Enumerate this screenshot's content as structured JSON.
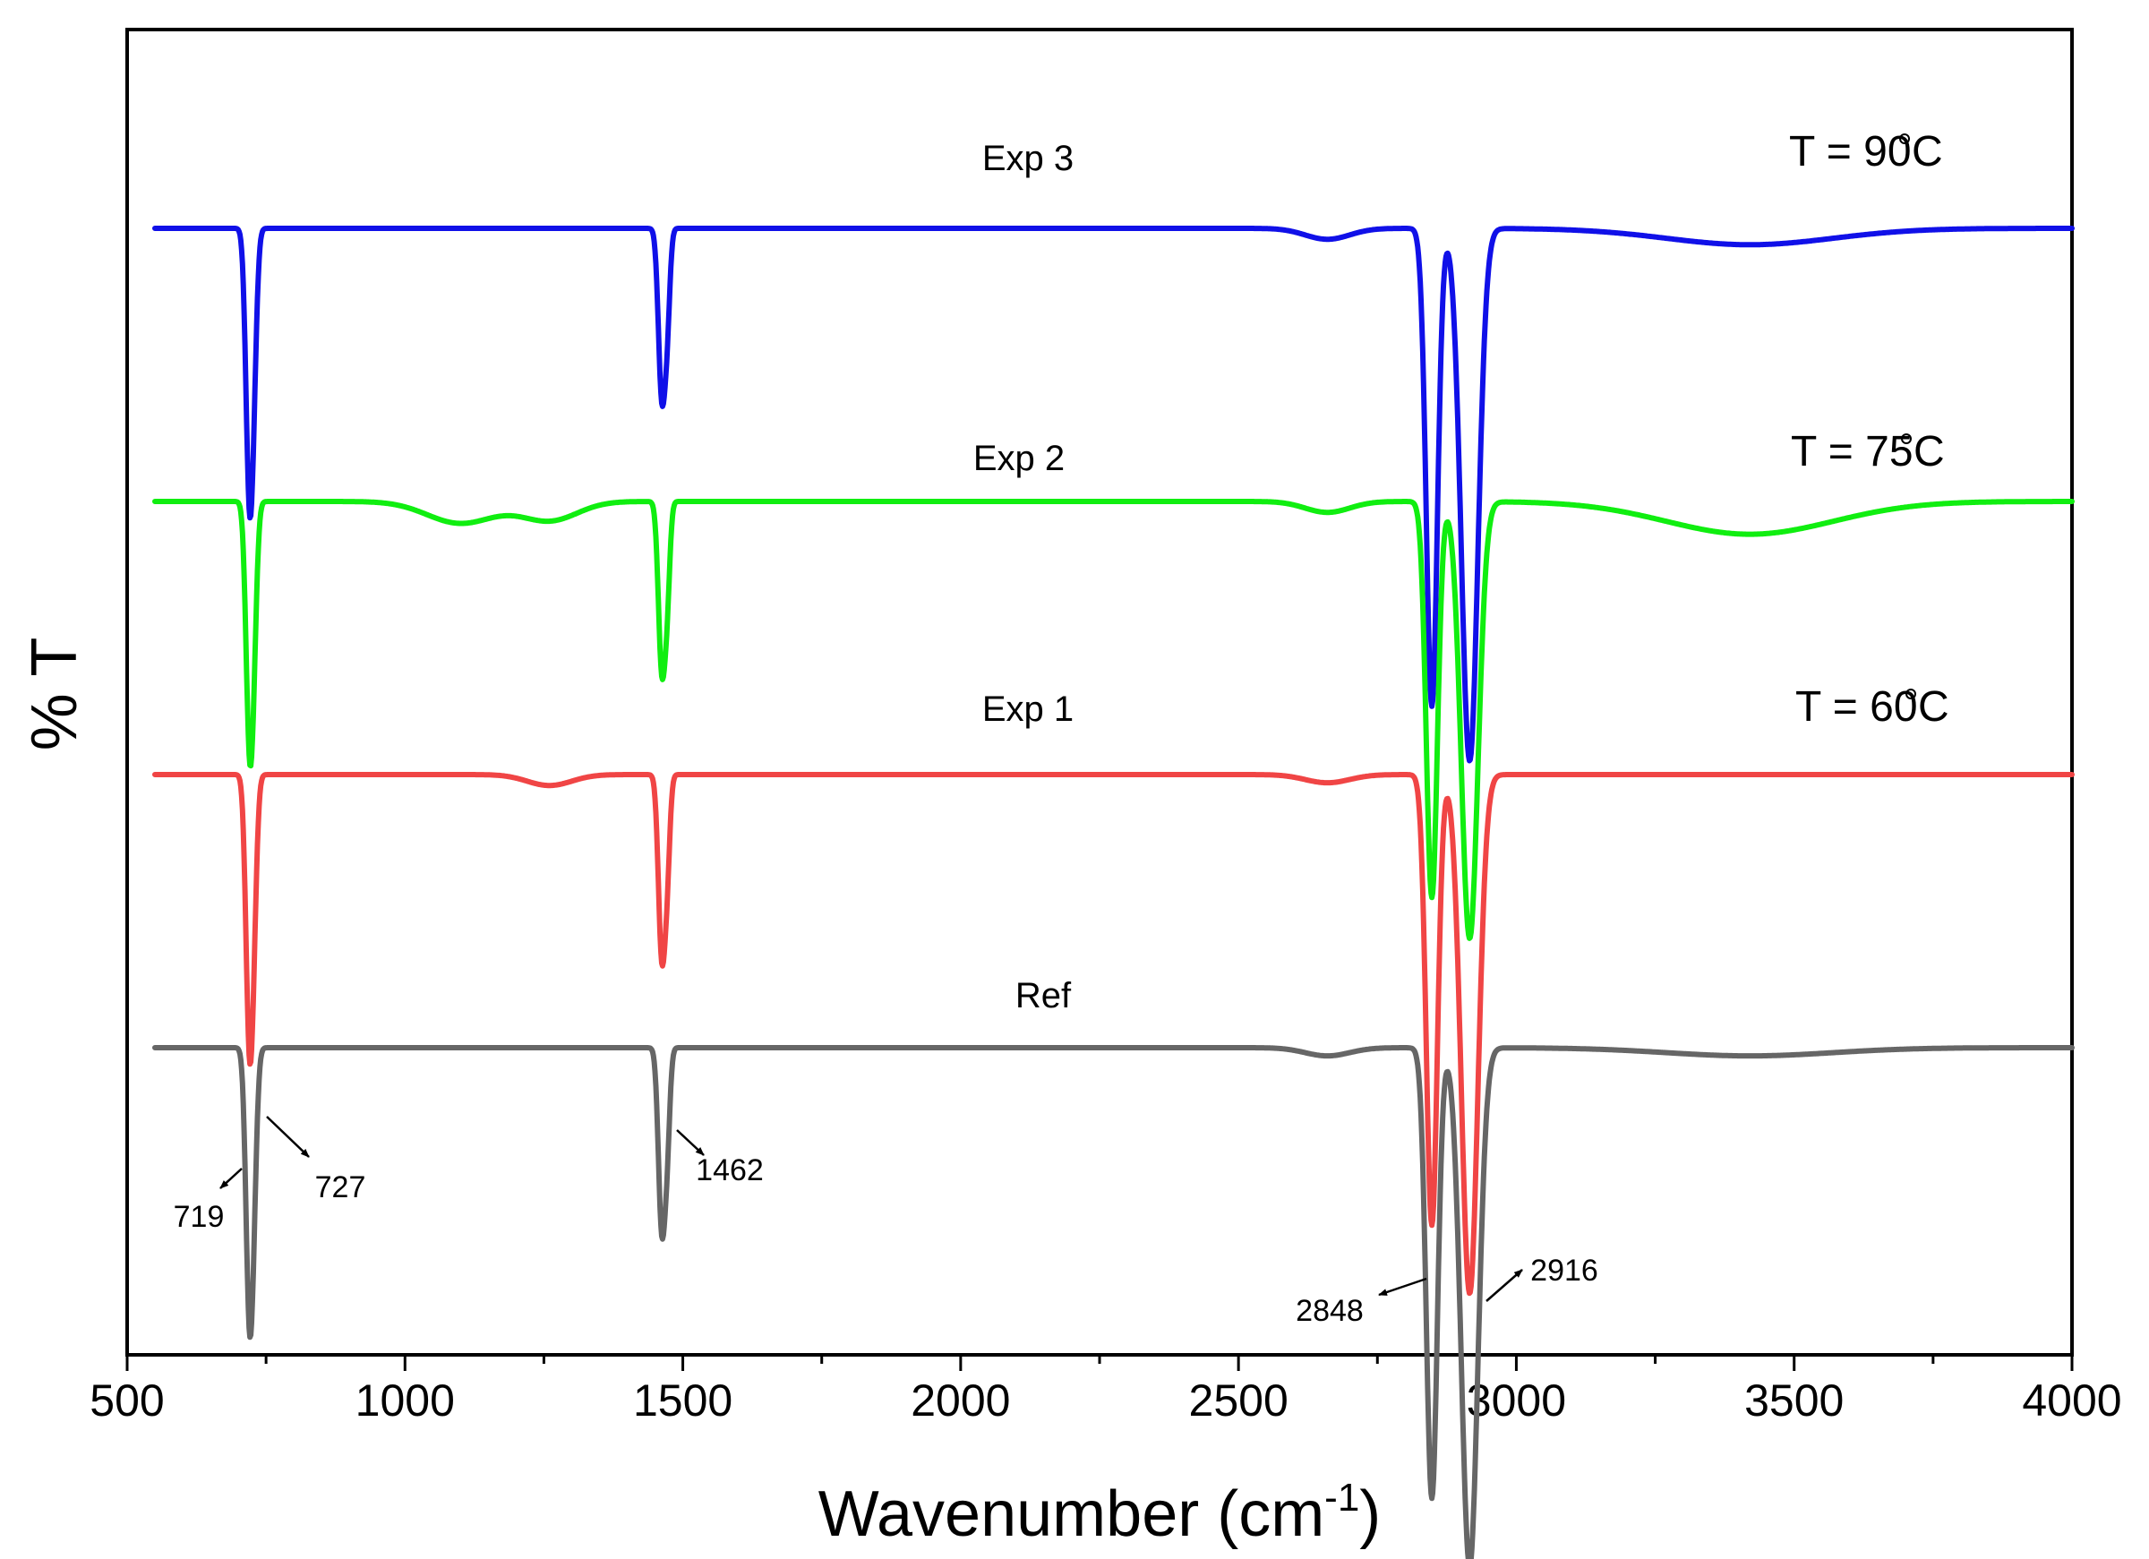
{
  "chart_data": {
    "type": "line",
    "xlabel": "Wavenumber (cm",
    "xlabel_sup": "-1",
    "xlabel_end": ")",
    "ylabel": "% T",
    "xlim": [
      500,
      4000
    ],
    "x_ticks": [
      500,
      1000,
      1500,
      2000,
      2500,
      3000,
      3500,
      4000
    ],
    "x_tick_labels": [
      "500",
      "1000",
      "1500",
      "2000",
      "2500",
      "3000",
      "3500",
      "4000"
    ],
    "grid": false,
    "x_start": 550,
    "series": [
      {
        "name": "Exp 3",
        "temperature": "T = 90",
        "temp_unit": "C",
        "color": "#1010e8",
        "baseline": 3.0,
        "peaks": [
          {
            "x": 719,
            "depth": 0.8,
            "width": 6
          },
          {
            "x": 727,
            "depth": 0.5,
            "width": 6
          },
          {
            "x": 1462,
            "depth": 0.6,
            "width": 6
          },
          {
            "x": 1472,
            "depth": 0.3,
            "width": 5
          },
          {
            "x": 2848,
            "depth": 1.75,
            "width": 10
          },
          {
            "x": 2916,
            "depth": 1.95,
            "width": 15
          },
          {
            "x": 2660,
            "depth": 0.04,
            "width": 40
          },
          {
            "x": 3420,
            "depth": 0.06,
            "width": 150
          }
        ]
      },
      {
        "name": "Exp 2",
        "temperature": "T = 75",
        "temp_unit": "C",
        "color": "#10ee10",
        "baseline": 2.0,
        "peaks": [
          {
            "x": 719,
            "depth": 0.7,
            "width": 6
          },
          {
            "x": 727,
            "depth": 0.5,
            "width": 6
          },
          {
            "x": 1462,
            "depth": 0.6,
            "width": 6
          },
          {
            "x": 1472,
            "depth": 0.3,
            "width": 5
          },
          {
            "x": 2848,
            "depth": 1.45,
            "width": 10
          },
          {
            "x": 2916,
            "depth": 1.6,
            "width": 15
          },
          {
            "x": 1100,
            "depth": 0.08,
            "width": 60
          },
          {
            "x": 1260,
            "depth": 0.07,
            "width": 50
          },
          {
            "x": 2660,
            "depth": 0.04,
            "width": 40
          },
          {
            "x": 3420,
            "depth": 0.12,
            "width": 150
          }
        ]
      },
      {
        "name": "Exp 1",
        "temperature": "T = 60",
        "temp_unit": "C",
        "color": "#f04545",
        "baseline": 1.0,
        "peaks": [
          {
            "x": 719,
            "depth": 0.8,
            "width": 6
          },
          {
            "x": 727,
            "depth": 0.5,
            "width": 6
          },
          {
            "x": 1462,
            "depth": 0.65,
            "width": 6
          },
          {
            "x": 1472,
            "depth": 0.3,
            "width": 5
          },
          {
            "x": 2848,
            "depth": 1.65,
            "width": 10
          },
          {
            "x": 2916,
            "depth": 1.9,
            "width": 15
          },
          {
            "x": 1260,
            "depth": 0.04,
            "width": 40
          },
          {
            "x": 2660,
            "depth": 0.03,
            "width": 40
          }
        ]
      },
      {
        "name": "Ref",
        "temperature": "",
        "temp_unit": "",
        "color": "#666666",
        "baseline": 0.0,
        "peaks": [
          {
            "x": 719,
            "depth": 0.8,
            "width": 6
          },
          {
            "x": 727,
            "depth": 0.5,
            "width": 6
          },
          {
            "x": 1462,
            "depth": 0.65,
            "width": 6
          },
          {
            "x": 1472,
            "depth": 0.3,
            "width": 5
          },
          {
            "x": 2848,
            "depth": 1.65,
            "width": 10
          },
          {
            "x": 2916,
            "depth": 1.9,
            "width": 15
          },
          {
            "x": 2660,
            "depth": 0.03,
            "width": 40
          },
          {
            "x": 3420,
            "depth": 0.03,
            "width": 150
          }
        ]
      }
    ],
    "annotations": [
      {
        "label": "719",
        "x": 719
      },
      {
        "label": "727",
        "x": 727
      },
      {
        "label": "1462",
        "x": 1462
      },
      {
        "label": "2848",
        "x": 2848
      },
      {
        "label": "2916",
        "x": 2916
      }
    ]
  }
}
